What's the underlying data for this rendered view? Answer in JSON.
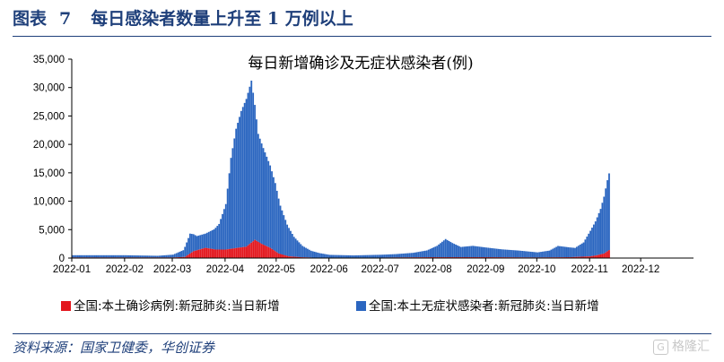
{
  "figure": {
    "label": "图表",
    "number": "7",
    "caption": "每日感染者数量上升至 1 万例以上",
    "source": "资料来源：国家卫健委，华创证券",
    "watermark": "格隆汇"
  },
  "colors": {
    "header": "#1e3f7a",
    "confirmed": "#e3171e",
    "asymptomatic": "#2b66c0"
  },
  "chart_data": {
    "type": "bar",
    "title": "每日新增确诊及无症状感染者(例)",
    "xlabel": "",
    "ylabel": "",
    "ylim": [
      0,
      35000
    ],
    "yticks": [
      0,
      5000,
      10000,
      15000,
      20000,
      25000,
      30000,
      35000
    ],
    "ytick_labels": [
      "0",
      "5,000",
      "10,000",
      "15,000",
      "20,000",
      "25,000",
      "30,000",
      "35,000"
    ],
    "xlim": [
      "2022-01-01",
      "2022-12-31"
    ],
    "xtick_labels": [
      "2022-01",
      "2022-02",
      "2022-03",
      "2022-04",
      "2022-05",
      "2022-06",
      "2022-07",
      "2022-08",
      "2022-09",
      "2022-10",
      "2022-11",
      "2022-12"
    ],
    "stacked": true,
    "legend_position": "bottom",
    "series": [
      {
        "name": "全国:本土确诊病例:新冠肺炎:当日新增",
        "color": "#e3171e",
        "x": [
          "2022-01-01",
          "2022-02-20",
          "2022-03-01",
          "2022-03-08",
          "2022-03-13",
          "2022-03-20",
          "2022-03-26",
          "2022-04-01",
          "2022-04-08",
          "2022-04-13",
          "2022-04-18",
          "2022-04-22",
          "2022-04-27",
          "2022-05-02",
          "2022-05-08",
          "2022-05-15",
          "2022-05-22",
          "2022-06-01",
          "2022-07-01",
          "2022-08-01",
          "2022-09-01",
          "2022-10-01",
          "2022-10-20",
          "2022-11-01",
          "2022-11-05",
          "2022-11-09",
          "2022-11-12"
        ],
        "y": [
          100,
          100,
          100,
          200,
          1200,
          1800,
          1500,
          1500,
          1800,
          2000,
          3200,
          2500,
          1800,
          800,
          300,
          150,
          80,
          60,
          80,
          150,
          150,
          100,
          150,
          300,
          500,
          800,
          1400
        ]
      },
      {
        "name": "全国:本土无症状感染者:新冠肺炎:当日新增",
        "color": "#2b66c0",
        "x": [
          "2022-01-01",
          "2022-02-01",
          "2022-02-20",
          "2022-03-01",
          "2022-03-07",
          "2022-03-11",
          "2022-03-15",
          "2022-03-20",
          "2022-03-25",
          "2022-03-28",
          "2022-04-01",
          "2022-04-04",
          "2022-04-07",
          "2022-04-10",
          "2022-04-13",
          "2022-04-16",
          "2022-04-20",
          "2022-04-23",
          "2022-04-27",
          "2022-04-30",
          "2022-05-03",
          "2022-05-07",
          "2022-05-11",
          "2022-05-16",
          "2022-05-21",
          "2022-05-26",
          "2022-06-01",
          "2022-06-15",
          "2022-07-01",
          "2022-07-10",
          "2022-07-20",
          "2022-07-28",
          "2022-08-03",
          "2022-08-08",
          "2022-08-12",
          "2022-08-17",
          "2022-08-24",
          "2022-09-01",
          "2022-09-10",
          "2022-09-20",
          "2022-10-01",
          "2022-10-08",
          "2022-10-13",
          "2022-10-18",
          "2022-10-23",
          "2022-10-28",
          "2022-11-01",
          "2022-11-04",
          "2022-11-07",
          "2022-11-09",
          "2022-11-11",
          "2022-11-12"
        ],
        "y": [
          400,
          400,
          300,
          500,
          1200,
          3500,
          2500,
          2500,
          3500,
          4500,
          8000,
          16000,
          21000,
          24000,
          26000,
          28500,
          19000,
          17000,
          14500,
          12000,
          8500,
          5500,
          3500,
          2000,
          1200,
          800,
          500,
          400,
          500,
          600,
          800,
          1200,
          2000,
          3200,
          2500,
          1800,
          2000,
          1700,
          1400,
          1200,
          900,
          1200,
          2000,
          1800,
          1600,
          2500,
          4500,
          6000,
          8000,
          10000,
          12500,
          13500
        ]
      }
    ]
  }
}
